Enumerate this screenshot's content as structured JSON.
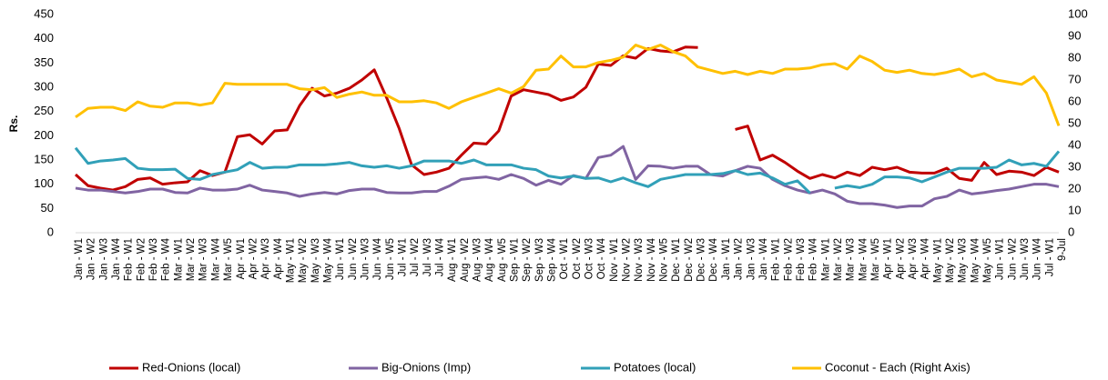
{
  "chart_data": {
    "type": "line",
    "y_label": "Rs.",
    "categories": [
      "Jan - W1",
      "Jan - W2",
      "Jan - W3",
      "Jan - W4",
      "Feb - W1",
      "Feb - W2",
      "Feb - W3",
      "Feb - W4",
      "Mar - W1",
      "Mar - W2",
      "Mar - W3",
      "Mar - W4",
      "Mar - W5",
      "Apr - W1",
      "Apr - W2",
      "Apr - W3",
      "Apr - W4",
      "May - W1",
      "May - W2",
      "May - W3",
      "May - W4",
      "Jun - W1",
      "Jun - W2",
      "Jun - W3",
      "Jun - W4",
      "Jun - W5",
      "Jul - W1",
      "Jul - W2",
      "Jul - W3",
      "Jul - W4",
      "Aug - W1",
      "Aug - W2",
      "Aug - W3",
      "Aug - W4",
      "Aug - W5",
      "Sep - W1",
      "Sep - W2",
      "Sep - W3",
      "Sep - W4",
      "Oct - W1",
      "Oct - W2",
      "Oct - W3",
      "Oct - W4",
      "Nov - W1",
      "Nov - W2",
      "Nov - W3",
      "Nov - W4",
      "Nov - W5",
      "Dec - W1",
      "Dec - W2",
      "Dec - W3",
      "Dec - W4",
      "Jan - W1",
      "Jan - W2",
      "Jan - W3",
      "Jan - W4",
      "Feb - W1",
      "Feb - W2",
      "Feb - W3",
      "Feb - W4",
      "Mar - W1",
      "Mar - W2",
      "Mar - W3",
      "Mar - W4",
      "Mar - W5",
      "Apr - W1",
      "Apr - W2",
      "Apr - W3",
      "Apr - W4",
      "May - W1",
      "May - W2",
      "May - W3",
      "May - W4",
      "May - W5",
      "Jun - W1",
      "Jun - W2",
      "Jun - W3",
      "Jun - W4",
      "Jul - W1",
      "9-Jul"
    ],
    "series": [
      {
        "name": "Red-Onions (local)",
        "color": "#c00000",
        "values": [
          120,
          97,
          92,
          88,
          95,
          110,
          113,
          100,
          103,
          105,
          128,
          118,
          125,
          198,
          202,
          183,
          210,
          212,
          262,
          298,
          282,
          288,
          298,
          315,
          336,
          278,
          215,
          140,
          120,
          125,
          133,
          160,
          185,
          183,
          210,
          282,
          295,
          290,
          285,
          273,
          280,
          300,
          348,
          345,
          365,
          360,
          380,
          375,
          373,
          383,
          382,
          null,
          null,
          213,
          220,
          150,
          160,
          145,
          127,
          112,
          120,
          113,
          125,
          118,
          135,
          130,
          135,
          125,
          123,
          123,
          133,
          112,
          108,
          145,
          120,
          127,
          125,
          118,
          135,
          125
        ]
      },
      {
        "name": "Big-Onions (Imp)",
        "color": "#8064a2",
        "values": [
          92,
          88,
          88,
          85,
          82,
          85,
          90,
          90,
          83,
          82,
          92,
          88,
          88,
          90,
          98,
          88,
          85,
          82,
          75,
          80,
          83,
          80,
          87,
          90,
          90,
          83,
          82,
          82,
          85,
          85,
          96,
          110,
          113,
          115,
          110,
          120,
          112,
          98,
          108,
          100,
          118,
          112,
          155,
          160,
          178,
          110,
          138,
          137,
          133,
          137,
          137,
          120,
          117,
          128,
          137,
          133,
          110,
          97,
          88,
          82,
          88,
          80,
          65,
          60,
          60,
          57,
          52,
          55,
          55,
          70,
          75,
          88,
          80,
          83,
          87,
          90,
          95,
          100,
          100,
          95
        ]
      },
      {
        "name": "Potatoes (local)",
        "color": "#31a0b8",
        "values": [
          175,
          143,
          148,
          150,
          153,
          133,
          130,
          130,
          131,
          112,
          110,
          120,
          125,
          130,
          145,
          133,
          135,
          135,
          140,
          140,
          140,
          142,
          145,
          138,
          135,
          138,
          133,
          138,
          148,
          148,
          148,
          143,
          150,
          140,
          140,
          140,
          133,
          130,
          117,
          113,
          117,
          112,
          113,
          105,
          113,
          103,
          95,
          110,
          115,
          120,
          120,
          120,
          122,
          128,
          120,
          123,
          113,
          100,
          107,
          82,
          null,
          92,
          97,
          93,
          100,
          115,
          115,
          113,
          105,
          115,
          125,
          133,
          133,
          133,
          135,
          150,
          140,
          143,
          137,
          168
        ]
      },
      {
        "name": "Coconut - Each (Right Axis)",
        "color": "#ffc000",
        "axis": "y2",
        "values": [
          53,
          57,
          57.5,
          57.5,
          56,
          60,
          58,
          57.5,
          59.5,
          59.5,
          58.5,
          59.5,
          68.5,
          68,
          68,
          68,
          68,
          68,
          66,
          65.5,
          66.5,
          62,
          63.5,
          64.5,
          63,
          63,
          60,
          60,
          60.5,
          59.5,
          57,
          60,
          62,
          64,
          66,
          64,
          67,
          74.5,
          75,
          81,
          76,
          76,
          78,
          79,
          80.5,
          86,
          84,
          86,
          83,
          81,
          76,
          74.5,
          73,
          74,
          72.5,
          74,
          73,
          75,
          75,
          75.5,
          77,
          77.5,
          75,
          81,
          78.5,
          74.5,
          73.5,
          74.5,
          73,
          72.5,
          73.5,
          75,
          71.5,
          73,
          70,
          69,
          68,
          71.5,
          64,
          49
        ]
      }
    ],
    "ylim": [
      0,
      450
    ],
    "yticks": [
      0,
      50,
      100,
      150,
      200,
      250,
      300,
      350,
      400,
      450
    ],
    "y2lim": [
      0,
      100
    ],
    "y2ticks": [
      0,
      10,
      20,
      30,
      40,
      50,
      60,
      70,
      80,
      90,
      100
    ],
    "grid": false,
    "legend": "bottom"
  }
}
